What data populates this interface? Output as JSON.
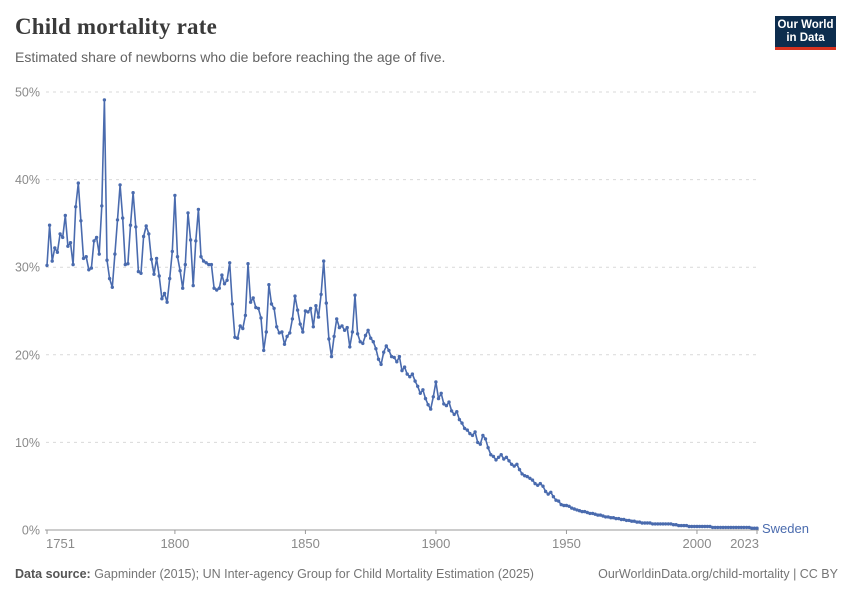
{
  "header": {
    "title": "Child mortality rate",
    "subtitle": "Estimated share of newborns who die before reaching the age of five.",
    "logo": {
      "line1": "Our World",
      "line2": "in Data"
    }
  },
  "footer": {
    "source_label": "Data source:",
    "source_text": " Gapminder (2015); UN Inter-agency Group for Child Mortality Estimation (2025)",
    "right_text": "OurWorldinData.org/child-mortality | CC BY"
  },
  "colors": {
    "line": "#4a6bae",
    "gridline": "#d9d9d9",
    "axis": "#999999",
    "tick_text": "#8a8a8a",
    "logo_bg": "#0d2d4e",
    "logo_accent": "#d8321f"
  },
  "chart_data": {
    "type": "line",
    "title": "Child mortality rate",
    "subtitle": "Estimated share of newborns who die before reaching the age of five.",
    "unit": "%",
    "xlim": [
      1751,
      2023
    ],
    "ylim": [
      0,
      50
    ],
    "grid": true,
    "x_ticks": {
      "years": [
        1751,
        1800,
        1850,
        1900,
        1950,
        2000,
        2023
      ],
      "labels": [
        "1751",
        "1800",
        "1850",
        "1900",
        "1950",
        "2000",
        "2023"
      ]
    },
    "y_ticks": {
      "values": [
        0,
        10,
        20,
        30,
        40,
        50
      ],
      "labels": [
        "0%",
        "10%",
        "20%",
        "30%",
        "40%",
        "50%"
      ]
    },
    "legend_position": "end-of-line",
    "series": [
      {
        "name": "Sweden",
        "color": "#4a6bae",
        "start_year": 1751,
        "values": [
          30.2,
          34.8,
          30.7,
          32.2,
          31.7,
          33.8,
          33.4,
          35.9,
          32.4,
          32.8,
          30.3,
          36.9,
          39.6,
          35.3,
          31.0,
          31.2,
          29.7,
          29.9,
          33.0,
          33.4,
          31.5,
          37.0,
          49.1,
          30.8,
          28.7,
          27.7,
          31.5,
          35.4,
          39.4,
          35.6,
          30.3,
          30.4,
          34.8,
          38.5,
          34.6,
          29.5,
          29.3,
          33.5,
          34.7,
          33.8,
          30.9,
          29.2,
          31.0,
          29.0,
          26.4,
          27.0,
          26.0,
          28.7,
          31.8,
          38.2,
          31.2,
          29.6,
          27.6,
          30.3,
          36.2,
          33.1,
          27.9,
          33.0,
          36.6,
          31.2,
          30.7,
          30.5,
          30.3,
          30.3,
          27.6,
          27.4,
          27.6,
          29.1,
          28.1,
          28.5,
          30.5,
          25.8,
          22.0,
          21.9,
          23.3,
          23.0,
          24.5,
          30.4,
          26.0,
          26.5,
          25.4,
          25.3,
          24.2,
          20.5,
          22.6,
          28.0,
          25.8,
          25.3,
          23.2,
          22.5,
          22.6,
          21.2,
          22.1,
          22.5,
          24.1,
          26.7,
          25.1,
          23.5,
          22.6,
          25.0,
          24.9,
          25.3,
          23.2,
          25.6,
          24.3,
          26.9,
          30.7,
          25.9,
          21.8,
          19.8,
          22.1,
          24.1,
          23.1,
          23.3,
          22.8,
          23.1,
          20.9,
          22.6,
          26.8,
          22.4,
          21.5,
          21.3,
          22.2,
          22.8,
          21.9,
          21.5,
          20.7,
          19.5,
          18.9,
          20.3,
          21.0,
          20.5,
          19.8,
          19.7,
          19.2,
          19.8,
          18.2,
          18.6,
          17.8,
          17.5,
          17.8,
          17.0,
          16.4,
          15.6,
          16.0,
          15.0,
          14.3,
          13.8,
          15.2,
          16.9,
          15.0,
          15.6,
          14.4,
          14.2,
          14.6,
          13.6,
          13.2,
          13.5,
          12.6,
          12.2,
          11.6,
          11.4,
          11.0,
          10.8,
          11.2,
          10.0,
          9.8,
          10.8,
          10.4,
          9.4,
          8.6,
          8.4,
          8.0,
          8.3,
          8.6,
          8.1,
          8.3,
          7.9,
          7.5,
          7.3,
          7.5,
          6.9,
          6.4,
          6.2,
          6.1,
          5.9,
          5.7,
          5.3,
          5.1,
          5.3,
          5.0,
          4.4,
          4.1,
          4.3,
          3.8,
          3.4,
          3.3,
          2.9,
          2.8,
          2.8,
          2.7,
          2.5,
          2.4,
          2.3,
          2.2,
          2.1,
          2.1,
          2.0,
          1.9,
          1.9,
          1.8,
          1.7,
          1.7,
          1.6,
          1.5,
          1.5,
          1.4,
          1.4,
          1.3,
          1.3,
          1.2,
          1.2,
          1.1,
          1.1,
          1.0,
          1.0,
          0.9,
          0.9,
          0.8,
          0.8,
          0.8,
          0.8,
          0.7,
          0.7,
          0.7,
          0.7,
          0.7,
          0.7,
          0.7,
          0.7,
          0.6,
          0.6,
          0.5,
          0.5,
          0.5,
          0.5,
          0.4,
          0.4,
          0.4,
          0.4,
          0.4,
          0.4,
          0.4,
          0.4,
          0.4,
          0.3,
          0.3,
          0.3,
          0.3,
          0.3,
          0.3,
          0.3,
          0.3,
          0.3,
          0.3,
          0.3,
          0.3,
          0.3,
          0.3,
          0.3,
          0.2,
          0.2,
          0.2
        ]
      }
    ]
  }
}
